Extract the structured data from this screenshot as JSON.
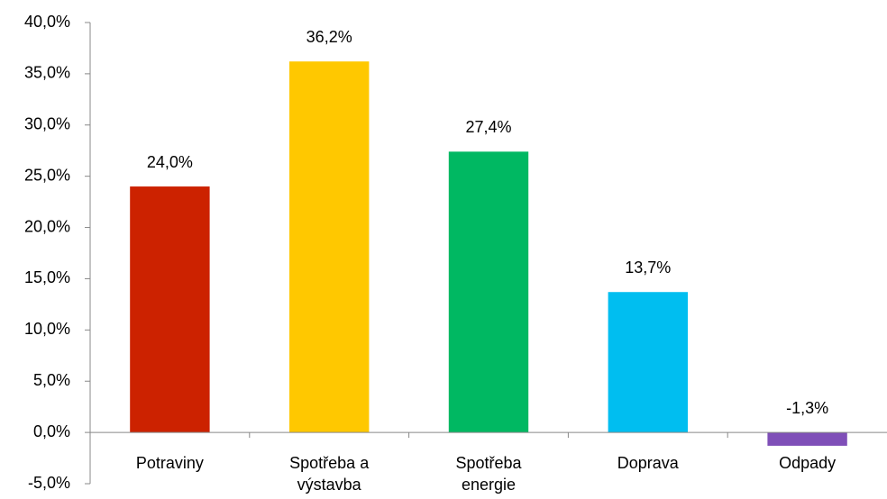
{
  "chart_data": {
    "type": "bar",
    "categories": [
      "Potraviny",
      "Spotřeba a výstavba",
      "Spotřeba energie",
      "Doprava",
      "Odpady"
    ],
    "values": [
      24.0,
      36.2,
      27.4,
      13.7,
      -1.3
    ],
    "value_labels": [
      "24,0%",
      "36,2%",
      "27,4%",
      "13,7%",
      "-1,3%"
    ],
    "colors": [
      "#cc2200",
      "#ffc800",
      "#00b862",
      "#00bef0",
      "#7f4fb8"
    ],
    "ylim": [
      -5,
      40
    ],
    "yticks": [
      {
        "value": -5,
        "label": "-5,0%"
      },
      {
        "value": 0,
        "label": "0,0%"
      },
      {
        "value": 5,
        "label": "5,0%"
      },
      {
        "value": 10,
        "label": "10,0%"
      },
      {
        "value": 15,
        "label": "15,0%"
      },
      {
        "value": 20,
        "label": "20,0%"
      },
      {
        "value": 25,
        "label": "25,0%"
      },
      {
        "value": 30,
        "label": "30,0%"
      },
      {
        "value": 35,
        "label": "35,0%"
      },
      {
        "value": 40,
        "label": "40,0%"
      }
    ],
    "grid": false
  }
}
